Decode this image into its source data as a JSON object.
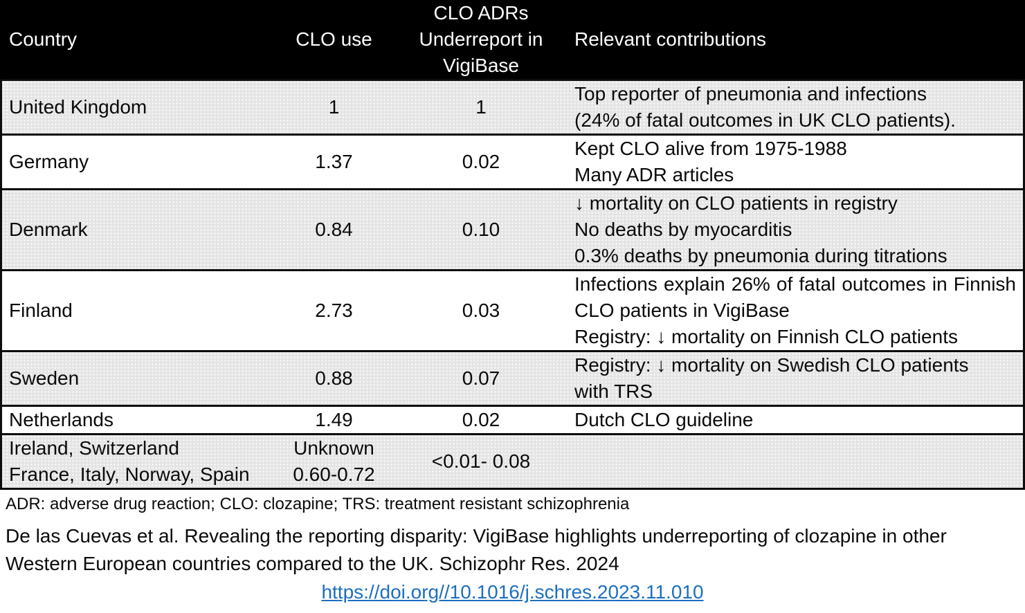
{
  "colors": {
    "header_bg": "#000000",
    "shaded_row": "#e4e4e4",
    "plain_row": "#ffffff",
    "border": "#0d0d0d",
    "text": "#0a0a0a",
    "link_blue": "#1c6fc0"
  },
  "table": {
    "header": {
      "country": "Country",
      "clo_use": "CLO use",
      "underreport_lines": [
        "CLO ADRs",
        "Underreport in",
        "VigiBase"
      ],
      "contributions": "Relevant contributions"
    },
    "rows": [
      {
        "country_lines": [
          "United Kingdom"
        ],
        "clo_use_lines": [
          "1"
        ],
        "underreport": "1",
        "contribution_items": [
          "Top reporter of pneumonia and infections",
          "(24% of fatal outcomes in UK CLO patients)."
        ],
        "shaded": true,
        "justify": false
      },
      {
        "country_lines": [
          "Germany"
        ],
        "clo_use_lines": [
          "1.37"
        ],
        "underreport": "0.02",
        "contribution_items": [
          "Kept CLO alive from 1975-1988",
          "Many ADR articles"
        ],
        "shaded": false,
        "justify": false
      },
      {
        "country_lines": [
          "Denmark"
        ],
        "clo_use_lines": [
          "0.84"
        ],
        "underreport": "0.10",
        "contribution_items": [
          "↓ mortality on CLO patients in registry",
          "No deaths by myocarditis",
          "0.3% deaths by pneumonia during titrations"
        ],
        "shaded": true,
        "justify": false
      },
      {
        "country_lines": [
          "Finland"
        ],
        "clo_use_lines": [
          "2.73"
        ],
        "underreport": "0.03",
        "contribution_items": [
          "Infections explain 26% of fatal outcomes in Finnish CLO patients in VigiBase",
          "Registry: ↓ mortality on Finnish CLO patients"
        ],
        "shaded": false,
        "justify": true
      },
      {
        "country_lines": [
          "Sweden"
        ],
        "clo_use_lines": [
          "0.88"
        ],
        "underreport": "0.07",
        "contribution_items": [
          "Registry: ↓ mortality on Swedish CLO patients",
          "with TRS"
        ],
        "shaded": true,
        "justify": false
      },
      {
        "country_lines": [
          "Netherlands"
        ],
        "clo_use_lines": [
          "1.49"
        ],
        "underreport": "0.02",
        "contribution_items": [
          "Dutch CLO guideline"
        ],
        "shaded": false,
        "justify": false
      },
      {
        "country_lines": [
          "Ireland, Switzerland",
          "France, Italy, Norway, Spain"
        ],
        "clo_use_lines": [
          "Unknown",
          "0.60-0.72"
        ],
        "underreport": "<0.01- 0.08",
        "contribution_items": [],
        "shaded": true,
        "justify": false
      }
    ]
  },
  "footnote": "ADR: adverse drug reaction; CLO: clozapine; TRS: treatment resistant schizophrenia",
  "citation": {
    "lines": [
      "De las Cuevas et al. Revealing the reporting disparity: VigiBase highlights underreporting of clozapine in other",
      "Western European countries compared to the UK. Schizophr Res. 2024"
    ],
    "doi": "https://doi.org//10.1016/j.schres.2023.11.010"
  }
}
